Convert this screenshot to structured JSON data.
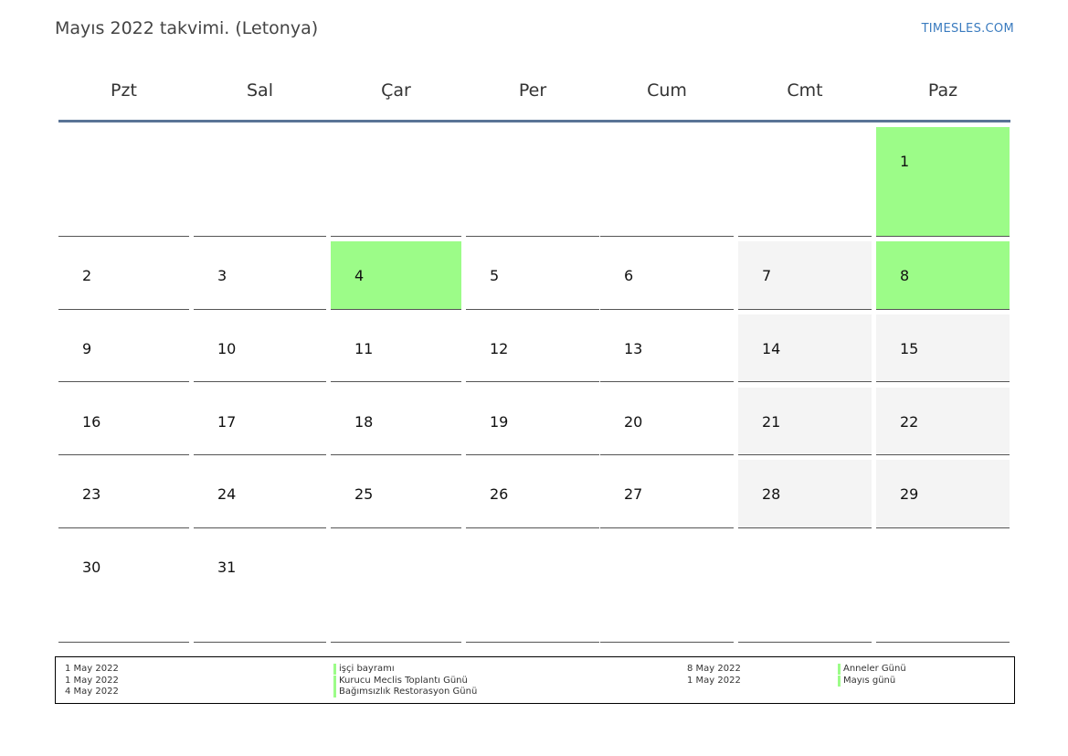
{
  "header": {
    "title": "Mayıs 2022 takvimi. (Letonya)",
    "brand": "TIMESLES.COM"
  },
  "weekdays": [
    "Pzt",
    "Sal",
    "Çar",
    "Per",
    "Cum",
    "Cmt",
    "Paz"
  ],
  "weeks": [
    [
      "",
      "",
      "",
      "",
      "",
      "",
      "1"
    ],
    [
      "2",
      "3",
      "4",
      "5",
      "6",
      "7",
      "8"
    ],
    [
      "9",
      "10",
      "11",
      "12",
      "13",
      "14",
      "15"
    ],
    [
      "16",
      "17",
      "18",
      "19",
      "20",
      "21",
      "22"
    ],
    [
      "23",
      "24",
      "25",
      "26",
      "27",
      "28",
      "29"
    ],
    [
      "30",
      "31",
      "",
      "",
      "",
      "",
      ""
    ]
  ],
  "holiday_days": [
    "1",
    "4",
    "8"
  ],
  "colors": {
    "holiday": "#9cfc88",
    "weekend": "#f4f4f4",
    "header_line": "#5a7496",
    "brand": "#3a7bbf"
  },
  "legend": {
    "left": [
      {
        "date": "1 May 2022",
        "name": "işçi bayramı"
      },
      {
        "date": "1 May 2022",
        "name": "Kurucu Meclis Toplantı Günü"
      },
      {
        "date": "4 May 2022",
        "name": "Bağımsızlık Restorasyon Günü"
      }
    ],
    "right": [
      {
        "date": "8 May 2022",
        "name": "Anneler Günü"
      },
      {
        "date": "1 May 2022",
        "name": "Mayıs günü"
      }
    ]
  }
}
